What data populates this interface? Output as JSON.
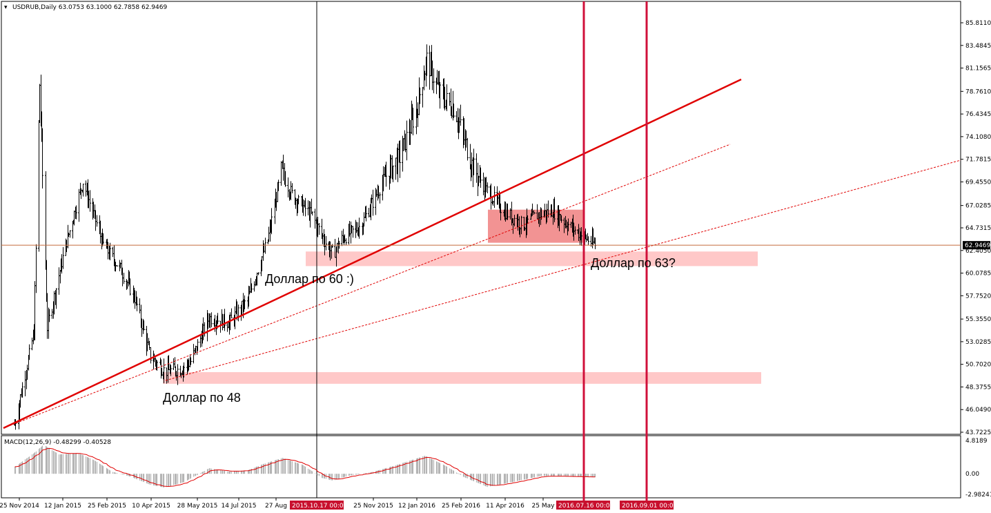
{
  "header": {
    "symbol_info": "USDRUB,Daily  63.0753 63.1000 62.7858 62.9469"
  },
  "macd_header": "MACD(12,26,9) -0.48299 -0.40528",
  "colors": {
    "candle": "#000000",
    "trendline": "#e00000",
    "zone": "#ffc8c8",
    "box": "#f08080",
    "vline": "#d0103a",
    "price_line": "#c46a3a",
    "macd_hist": "#b4b4b4",
    "macd_signal": "#e00000"
  },
  "chart_data": [
    {
      "type": "candlestick",
      "title": "USDRUB,Daily",
      "ylim": [
        43.7225,
        87.0
      ],
      "y_ticks": [
        "85.8110",
        "83.4845",
        "81.1565",
        "78.7610",
        "76.4345",
        "74.1080",
        "71.7815",
        "69.4550",
        "67.0285",
        "64.7315",
        "62.4050",
        "60.0785",
        "57.7520",
        "55.3550",
        "53.0285",
        "50.7020",
        "48.3755",
        "46.0490",
        "43.7225"
      ],
      "x_ticks": [
        "25 Nov 2014",
        "12 Jan 2015",
        "25 Feb 2015",
        "10 Apr 2015",
        "28 May 2015",
        "14 Jul 2015",
        "27 Aug",
        "25 Nov 2015",
        "12 Jan 2016",
        "25 Feb 2016",
        "11 Apr 2016",
        "25 May"
      ],
      "last_price": "62.9469",
      "price_anchors": [
        [
          "2014-11-20",
          44.5
        ],
        [
          "2014-12-10",
          54.0
        ],
        [
          "2014-12-16",
          79.5
        ],
        [
          "2014-12-24",
          54.5
        ],
        [
          "2015-01-12",
          63.0
        ],
        [
          "2015-01-30",
          69.5
        ],
        [
          "2015-02-20",
          63.0
        ],
        [
          "2015-03-10",
          60.5
        ],
        [
          "2015-03-25",
          57.5
        ],
        [
          "2015-04-10",
          51.5
        ],
        [
          "2015-04-25",
          50.0
        ],
        [
          "2015-05-12",
          50.2
        ],
        [
          "2015-05-22",
          51.0
        ],
        [
          "2015-06-10",
          55.5
        ],
        [
          "2015-07-01",
          55.0
        ],
        [
          "2015-07-20",
          57.3
        ],
        [
          "2015-08-10",
          63.5
        ],
        [
          "2015-08-24",
          70.5
        ],
        [
          "2015-09-05",
          68.0
        ],
        [
          "2015-09-25",
          66.0
        ],
        [
          "2015-10-10",
          63.0
        ],
        [
          "2015-10-17",
          62.0
        ],
        [
          "2015-10-25",
          63.5
        ],
        [
          "2015-11-15",
          65.0
        ],
        [
          "2015-12-10",
          70.0
        ],
        [
          "2015-12-25",
          72.0
        ],
        [
          "2016-01-12",
          77.0
        ],
        [
          "2016-01-22",
          82.0
        ],
        [
          "2016-02-05",
          78.5
        ],
        [
          "2016-02-20",
          77.0
        ],
        [
          "2016-03-10",
          71.0
        ],
        [
          "2016-03-25",
          68.5
        ],
        [
          "2016-04-11",
          66.5
        ],
        [
          "2016-05-01",
          65.0
        ],
        [
          "2016-05-15",
          66.0
        ],
        [
          "2016-06-01",
          66.5
        ],
        [
          "2016-06-20",
          64.8
        ],
        [
          "2016-07-15",
          63.0
        ]
      ],
      "time_markers": [
        "2015.10.17 00:00",
        "2016.07.16 00:00",
        "2016.09.01 00:00"
      ],
      "zones": [
        {
          "from": 60.8,
          "to": 62.3
        },
        {
          "from": 48.7,
          "to": 49.9
        },
        {
          "from": 63.2,
          "to": 66.6
        }
      ],
      "annotations": [
        "Доллар по 60 :)",
        "Доллар по 63?",
        "Доллар по 48"
      ]
    },
    {
      "type": "area",
      "title": "MACD(12,26,9)",
      "ylim": [
        -2.98241,
        4.8189
      ],
      "y_ticks": [
        "4.8189",
        "0.00",
        "-2.98241"
      ],
      "macd_anchors": [
        [
          "2014-11-20",
          1.0
        ],
        [
          "2014-12-10",
          3.0
        ],
        [
          "2014-12-20",
          4.2
        ],
        [
          "2015-01-05",
          2.8
        ],
        [
          "2015-01-25",
          3.0
        ],
        [
          "2015-02-10",
          2.0
        ],
        [
          "2015-03-01",
          0.3
        ],
        [
          "2015-03-20",
          -0.4
        ],
        [
          "2015-04-10",
          -1.6
        ],
        [
          "2015-04-25",
          -2.0
        ],
        [
          "2015-05-15",
          -1.2
        ],
        [
          "2015-06-10",
          0.8
        ],
        [
          "2015-07-01",
          0.3
        ],
        [
          "2015-07-20",
          0.5
        ],
        [
          "2015-08-05",
          1.4
        ],
        [
          "2015-08-25",
          2.3
        ],
        [
          "2015-09-15",
          1.3
        ],
        [
          "2015-10-05",
          -0.6
        ],
        [
          "2015-10-17",
          -1.0
        ],
        [
          "2015-11-01",
          -0.3
        ],
        [
          "2015-11-25",
          0.2
        ],
        [
          "2015-12-20",
          1.2
        ],
        [
          "2016-01-20",
          2.6
        ],
        [
          "2016-02-10",
          1.2
        ],
        [
          "2016-03-01",
          -0.5
        ],
        [
          "2016-03-25",
          -1.9
        ],
        [
          "2016-04-20",
          -1.2
        ],
        [
          "2016-05-20",
          -0.3
        ],
        [
          "2016-06-20",
          -0.4
        ],
        [
          "2016-07-15",
          -0.48
        ]
      ]
    }
  ]
}
